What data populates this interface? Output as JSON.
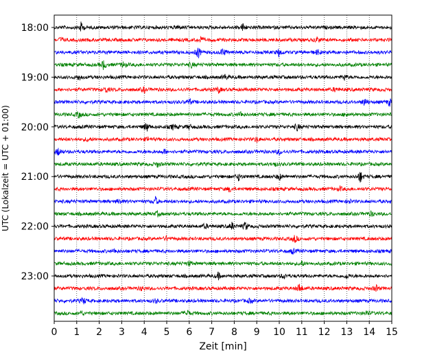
{
  "chart_data": {
    "type": "line",
    "title": "",
    "xlabel": "Zeit  [min]",
    "ylabel": "UTC (Lokalzeit = UTC + 01:00)",
    "xlim": [
      0,
      15
    ],
    "x_ticks": [
      0,
      1,
      2,
      3,
      4,
      5,
      6,
      7,
      8,
      9,
      10,
      11,
      12,
      13,
      14,
      15
    ],
    "grid": "vertical-dotted",
    "legend": "none",
    "row_interval_minutes": 15,
    "time_labels": [
      {
        "label": "18:00",
        "row": 0
      },
      {
        "label": "19:00",
        "row": 4
      },
      {
        "label": "20:00",
        "row": 8
      },
      {
        "label": "21:00",
        "row": 12
      },
      {
        "label": "22:00",
        "row": 16
      },
      {
        "label": "23:00",
        "row": 20
      }
    ],
    "trace_colors": [
      "#000000",
      "#ff0000",
      "#0000ff",
      "#008000"
    ],
    "rows": [
      {
        "start": "18:00",
        "color": "#000000",
        "events": [
          [
            1.2,
            1.0
          ],
          [
            8.4,
            0.8
          ],
          [
            5.5,
            0.4
          ]
        ]
      },
      {
        "start": "18:15",
        "color": "#ff0000",
        "events": [
          [
            0.3,
            0.5
          ],
          [
            6.5,
            0.6
          ],
          [
            11.7,
            0.6
          ]
        ]
      },
      {
        "start": "18:30",
        "color": "#0000ff",
        "events": [
          [
            6.4,
            1.2
          ],
          [
            7.5,
            0.8
          ],
          [
            10.0,
            0.9
          ],
          [
            11.7,
            0.5
          ]
        ]
      },
      {
        "start": "18:45",
        "color": "#008000",
        "events": [
          [
            2.2,
            1.0
          ],
          [
            3.1,
            0.7
          ],
          [
            6.1,
            0.5
          ]
        ]
      },
      {
        "start": "19:00",
        "color": "#000000",
        "events": [
          [
            1.1,
            0.6
          ],
          [
            7.6,
            0.5
          ],
          [
            12.9,
            0.5
          ]
        ]
      },
      {
        "start": "19:15",
        "color": "#ff0000",
        "events": [
          [
            2.3,
            0.6
          ],
          [
            4.0,
            0.5
          ],
          [
            7.3,
            0.6
          ],
          [
            12.5,
            0.4
          ]
        ]
      },
      {
        "start": "19:30",
        "color": "#0000ff",
        "events": [
          [
            6.0,
            0.6
          ],
          [
            13.8,
            0.8
          ],
          [
            14.9,
            0.7
          ]
        ]
      },
      {
        "start": "19:45",
        "color": "#008000",
        "events": [
          [
            1.1,
            0.7
          ],
          [
            8.3,
            0.5
          ],
          [
            13.0,
            0.4
          ]
        ]
      },
      {
        "start": "20:00",
        "color": "#000000",
        "events": [
          [
            4.1,
            1.0
          ],
          [
            5.3,
            0.6
          ],
          [
            6.0,
            0.5
          ],
          [
            10.8,
            0.7
          ]
        ]
      },
      {
        "start": "20:15",
        "color": "#ff0000",
        "events": [
          [
            1.5,
            0.5
          ],
          [
            4.2,
            0.4
          ],
          [
            9.0,
            0.5
          ]
        ]
      },
      {
        "start": "20:30",
        "color": "#0000ff",
        "events": [
          [
            0.2,
            0.9
          ],
          [
            4.9,
            0.4
          ],
          [
            10.0,
            0.5
          ]
        ]
      },
      {
        "start": "20:45",
        "color": "#008000",
        "events": [
          [
            4.6,
            0.5
          ],
          [
            9.8,
            0.4
          ]
        ]
      },
      {
        "start": "21:00",
        "color": "#000000",
        "events": [
          [
            8.2,
            0.7
          ],
          [
            10.0,
            0.7
          ],
          [
            13.6,
            1.2
          ]
        ]
      },
      {
        "start": "21:15",
        "color": "#ff0000",
        "events": [
          [
            7.8,
            0.5
          ],
          [
            12.7,
            0.4
          ]
        ]
      },
      {
        "start": "21:30",
        "color": "#0000ff",
        "events": [
          [
            4.5,
            0.8
          ],
          [
            2.9,
            0.5
          ],
          [
            13.1,
            0.4
          ]
        ]
      },
      {
        "start": "21:45",
        "color": "#008000",
        "events": [
          [
            4.6,
            0.4
          ],
          [
            14.1,
            0.5
          ]
        ]
      },
      {
        "start": "22:00",
        "color": "#000000",
        "events": [
          [
            6.7,
            0.5
          ],
          [
            7.9,
            0.7
          ],
          [
            8.5,
            0.9
          ]
        ]
      },
      {
        "start": "22:15",
        "color": "#ff0000",
        "events": [
          [
            10.7,
            0.8
          ],
          [
            5.0,
            0.4
          ]
        ]
      },
      {
        "start": "22:30",
        "color": "#0000ff",
        "events": [
          [
            10.6,
            0.5
          ],
          [
            2.7,
            0.4
          ]
        ]
      },
      {
        "start": "22:45",
        "color": "#008000",
        "events": [
          [
            11.0,
            0.5
          ],
          [
            6.0,
            0.4
          ]
        ]
      },
      {
        "start": "23:00",
        "color": "#000000",
        "events": [
          [
            7.3,
            0.6
          ],
          [
            10.2,
            0.6
          ],
          [
            13.0,
            0.5
          ]
        ]
      },
      {
        "start": "23:15",
        "color": "#ff0000",
        "events": [
          [
            10.9,
            1.0
          ],
          [
            3.9,
            0.4
          ],
          [
            14.3,
            0.6
          ]
        ]
      },
      {
        "start": "23:30",
        "color": "#0000ff",
        "events": [
          [
            1.3,
            0.7
          ],
          [
            4.5,
            0.4
          ],
          [
            8.7,
            0.4
          ]
        ]
      },
      {
        "start": "23:45",
        "color": "#008000",
        "events": [
          [
            5.9,
            0.7
          ],
          [
            1.2,
            0.4
          ],
          [
            13.9,
            0.4
          ]
        ]
      }
    ]
  }
}
